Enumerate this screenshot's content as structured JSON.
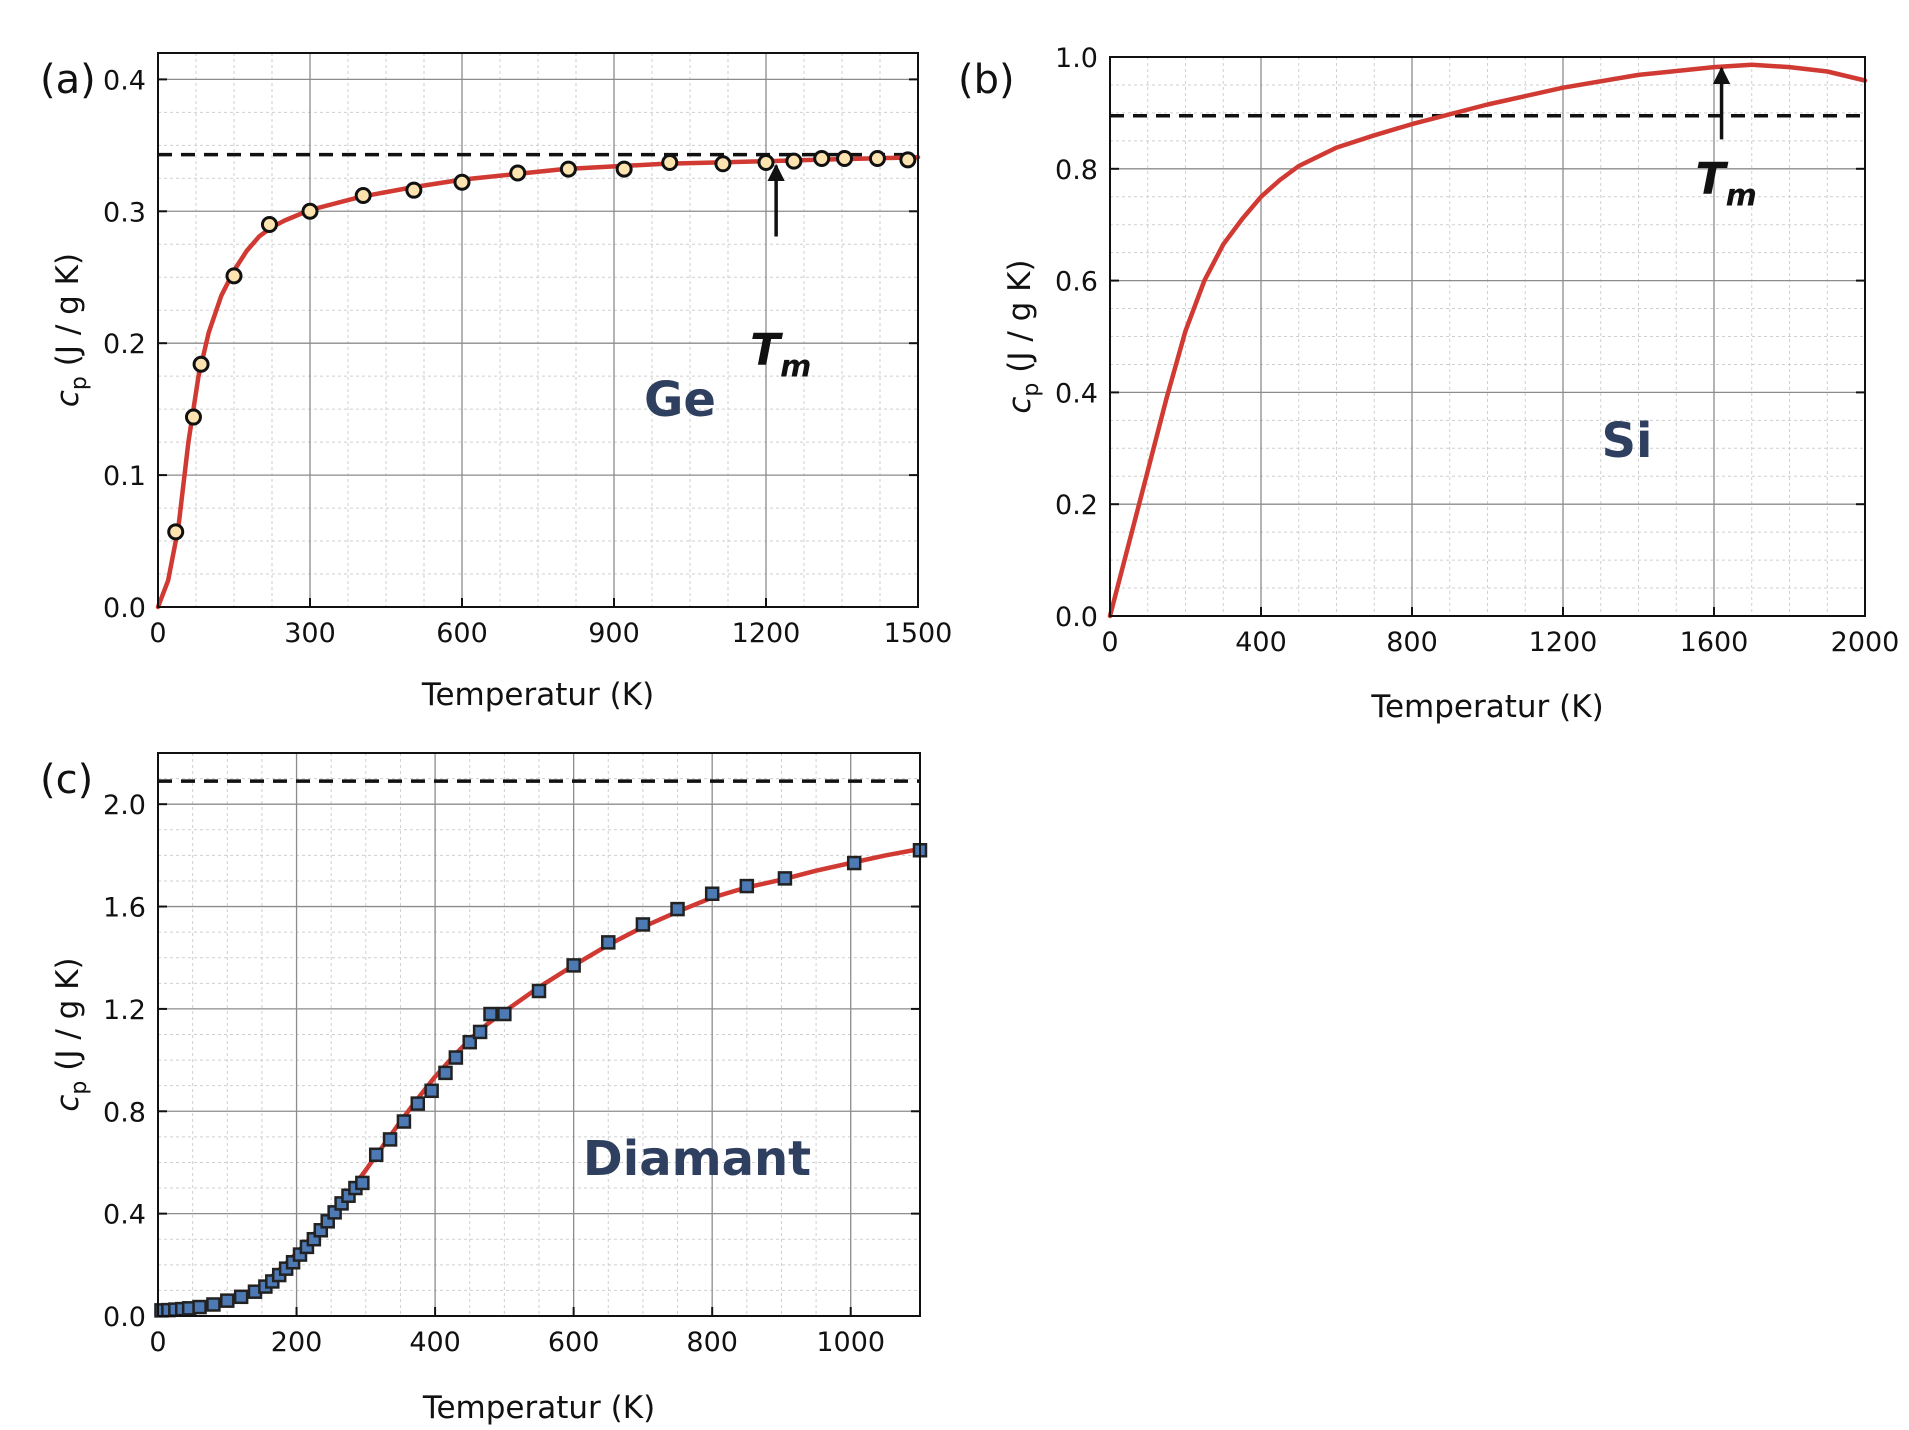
{
  "chart_data": [
    {
      "type": "line",
      "panel_label": "(a)",
      "material_label": "Ge",
      "xlabel": "Temperatur (K)",
      "ylabel": {
        "symbol": "c",
        "subscript": "p",
        "unit": "(J / g K)"
      },
      "xlim": [
        0,
        1500
      ],
      "ylim": [
        0,
        0.42
      ],
      "xticks": [
        0,
        300,
        600,
        900,
        1200,
        1500
      ],
      "xtick_labels": [
        "0",
        "300",
        "600",
        "900",
        "1200",
        "1500"
      ],
      "yticks": [
        0.0,
        0.1,
        0.2,
        0.3,
        0.4
      ],
      "ytick_labels": [
        "0.0",
        "0.1",
        "0.2",
        "0.3",
        "0.4"
      ],
      "grid": true,
      "reference_line": {
        "y": 0.343,
        "style": "dashed"
      },
      "annotation": {
        "text": "T",
        "subscript": "m",
        "x": 1220,
        "arrow_tip_y": 0.337
      },
      "series": [
        {
          "kind": "fit_curve",
          "x": [
            0,
            20,
            40,
            60,
            80,
            100,
            125,
            150,
            175,
            200,
            225,
            250,
            300,
            400,
            500,
            600,
            700,
            800,
            900,
            1000,
            1100,
            1200,
            1300,
            1400,
            1500
          ],
          "y": [
            0.0,
            0.02,
            0.06,
            0.125,
            0.175,
            0.208,
            0.236,
            0.255,
            0.27,
            0.281,
            0.288,
            0.293,
            0.301,
            0.311,
            0.318,
            0.324,
            0.328,
            0.332,
            0.334,
            0.336,
            0.337,
            0.338,
            0.339,
            0.34,
            0.341
          ]
        },
        {
          "kind": "measured_points",
          "x": [
            35,
            70,
            85,
            150,
            220,
            300,
            405,
            505,
            600,
            710,
            810,
            920,
            1010,
            1115,
            1200,
            1255,
            1310,
            1355,
            1420,
            1480
          ],
          "y": [
            0.057,
            0.144,
            0.184,
            0.251,
            0.29,
            0.3,
            0.312,
            0.316,
            0.322,
            0.329,
            0.332,
            0.332,
            0.337,
            0.336,
            0.337,
            0.338,
            0.34,
            0.34,
            0.34,
            0.339
          ]
        }
      ]
    },
    {
      "type": "line",
      "panel_label": "(b)",
      "material_label": "Si",
      "xlabel": "Temperatur (K)",
      "ylabel": {
        "symbol": "c",
        "subscript": "p",
        "unit": "(J / g K)"
      },
      "xlim": [
        0,
        2000
      ],
      "ylim": [
        0,
        1.0
      ],
      "xticks": [
        0,
        400,
        800,
        1200,
        1600,
        2000
      ],
      "xtick_labels": [
        "0",
        "400",
        "800",
        "1200",
        "1600",
        "2000"
      ],
      "yticks": [
        0.0,
        0.2,
        0.4,
        0.6,
        0.8,
        1.0
      ],
      "ytick_labels": [
        "0.0",
        "0.2",
        "0.4",
        "0.6",
        "0.8",
        "1.0"
      ],
      "grid": true,
      "reference_line": {
        "y": 0.895,
        "style": "dashed"
      },
      "annotation": {
        "text": "T",
        "subscript": "m",
        "x": 1620,
        "arrow_tip_y": 0.985
      },
      "series": [
        {
          "kind": "fit_curve",
          "x": [
            0,
            50,
            100,
            150,
            200,
            250,
            300,
            350,
            400,
            450,
            500,
            600,
            700,
            800,
            1000,
            1200,
            1400,
            1600,
            1700,
            1800,
            1900,
            2000
          ],
          "y": [
            0.0,
            0.13,
            0.26,
            0.39,
            0.51,
            0.6,
            0.665,
            0.71,
            0.75,
            0.78,
            0.805,
            0.838,
            0.86,
            0.88,
            0.915,
            0.945,
            0.968,
            0.982,
            0.986,
            0.982,
            0.974,
            0.958
          ]
        }
      ]
    },
    {
      "type": "line",
      "panel_label": "(c)",
      "material_label": "Diamant",
      "xlabel": "Temperatur (K)",
      "ylabel": {
        "symbol": "c",
        "subscript": "p",
        "unit": "(J / g K)"
      },
      "xlim": [
        0,
        1100
      ],
      "ylim": [
        0,
        2.2
      ],
      "xticks": [
        0,
        200,
        400,
        600,
        800,
        1000
      ],
      "xtick_labels": [
        "0",
        "200",
        "400",
        "600",
        "800",
        "1000"
      ],
      "yticks": [
        0.0,
        0.4,
        0.8,
        1.2,
        1.6,
        2.0
      ],
      "ytick_labels": [
        "0.0",
        "0.4",
        "0.8",
        "1.2",
        "1.6",
        "2.0"
      ],
      "grid": true,
      "reference_line": {
        "y": 2.09,
        "style": "dashed"
      },
      "series": [
        {
          "kind": "fit_curve",
          "x": [
            0,
            25,
            50,
            75,
            100,
            125,
            150,
            175,
            200,
            225,
            250,
            275,
            300,
            325,
            350,
            375,
            400,
            425,
            450,
            475,
            500,
            550,
            600,
            650,
            700,
            750,
            800,
            850,
            900,
            950,
            1000,
            1050,
            1100
          ],
          "y": [
            0.02,
            0.025,
            0.03,
            0.04,
            0.055,
            0.08,
            0.12,
            0.18,
            0.245,
            0.32,
            0.4,
            0.48,
            0.57,
            0.665,
            0.76,
            0.85,
            0.935,
            1.01,
            1.08,
            1.14,
            1.19,
            1.285,
            1.37,
            1.45,
            1.52,
            1.58,
            1.635,
            1.675,
            1.705,
            1.74,
            1.77,
            1.8,
            1.825
          ]
        },
        {
          "kind": "measured_points",
          "x": [
            5,
            15,
            25,
            35,
            45,
            60,
            80,
            100,
            120,
            140,
            155,
            165,
            175,
            185,
            195,
            205,
            215,
            225,
            235,
            245,
            255,
            265,
            275,
            285,
            295,
            315,
            335,
            355,
            375,
            395,
            415,
            430,
            450,
            465,
            480,
            500,
            550,
            600,
            650,
            700,
            750,
            800,
            850,
            905,
            1005,
            1100
          ],
          "y": [
            0.022,
            0.023,
            0.025,
            0.027,
            0.03,
            0.035,
            0.045,
            0.06,
            0.075,
            0.095,
            0.115,
            0.135,
            0.16,
            0.185,
            0.21,
            0.24,
            0.27,
            0.3,
            0.335,
            0.37,
            0.405,
            0.44,
            0.47,
            0.5,
            0.52,
            0.63,
            0.69,
            0.76,
            0.83,
            0.88,
            0.95,
            1.01,
            1.07,
            1.11,
            1.18,
            1.18,
            1.27,
            1.37,
            1.46,
            1.53,
            1.59,
            1.65,
            1.68,
            1.71,
            1.77,
            1.82
          ]
        }
      ]
    }
  ]
}
